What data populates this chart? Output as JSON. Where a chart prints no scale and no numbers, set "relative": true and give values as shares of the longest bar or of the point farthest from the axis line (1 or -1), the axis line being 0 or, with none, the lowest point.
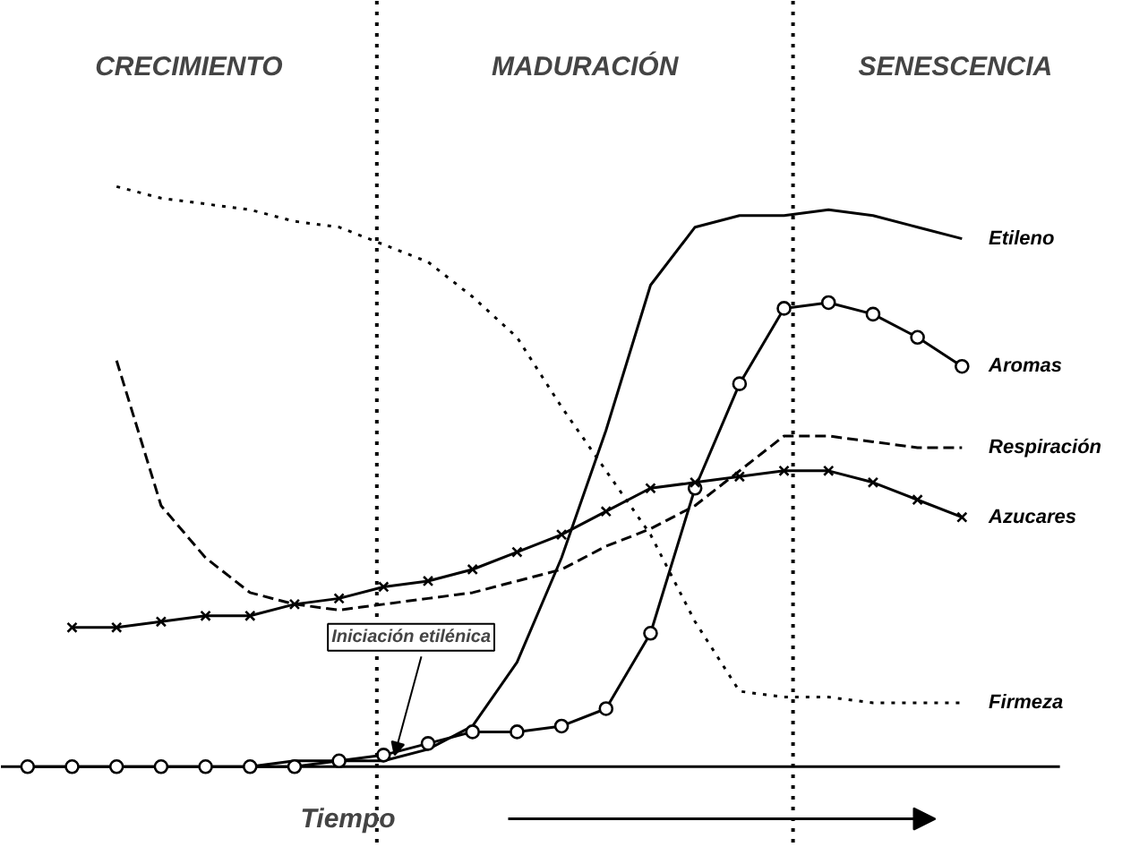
{
  "chart_data": {
    "type": "line",
    "relative": true,
    "xlabel": "Tiempo",
    "tick_labels": false,
    "grid": false,
    "legend": "right",
    "annotations": [
      "CRECIMIENTO",
      "MADURACIÓN",
      "SENESCENCIA",
      "Iniciación etilénica"
    ],
    "categories": [
      null,
      null,
      null,
      null,
      null,
      null,
      null,
      null,
      null,
      null,
      null,
      null,
      null,
      null,
      null,
      null,
      null,
      null,
      null,
      null,
      null,
      null,
      null,
      null
    ],
    "series": [
      {
        "name": "Etileno",
        "color": "#000000",
        "line_style": "solid",
        "marker": "none",
        "values": [
          null,
          null,
          null,
          null,
          null,
          0,
          0.01,
          0.01,
          0.01,
          0.03,
          0.07,
          0.18,
          0.36,
          0.58,
          0.83,
          0.93,
          0.95,
          0.95,
          0.96,
          0.95,
          0.93,
          0.91,
          null,
          null
        ]
      },
      {
        "name": "Aromas",
        "color": "#000000",
        "line_style": "solid",
        "marker": "circle",
        "values": [
          0,
          0,
          0,
          0,
          0,
          0,
          0,
          0.01,
          0.02,
          0.04,
          0.06,
          0.06,
          0.07,
          0.1,
          0.23,
          0.48,
          0.66,
          0.79,
          0.8,
          0.78,
          0.74,
          0.69,
          null,
          null
        ]
      },
      {
        "name": "Respiración",
        "color": "#000000",
        "line_style": "dashed",
        "marker": "none",
        "values": [
          null,
          null,
          0.7,
          0.45,
          0.36,
          0.3,
          0.28,
          0.27,
          0.28,
          0.29,
          0.3,
          0.32,
          0.34,
          0.38,
          0.41,
          0.45,
          0.51,
          0.57,
          0.57,
          0.56,
          0.55,
          0.55,
          null,
          null
        ]
      },
      {
        "name": "Azucares",
        "color": "#000000",
        "line_style": "solid",
        "marker": "cross",
        "values": [
          null,
          0.24,
          0.24,
          0.25,
          0.26,
          0.26,
          0.28,
          0.29,
          0.31,
          0.32,
          0.34,
          0.37,
          0.4,
          0.44,
          0.48,
          0.49,
          0.5,
          0.51,
          0.51,
          0.49,
          0.46,
          0.43,
          null,
          null
        ]
      },
      {
        "name": "Firmeza",
        "color": "#000000",
        "line_style": "dotted",
        "marker": "none",
        "values": [
          null,
          null,
          1.0,
          0.98,
          0.97,
          0.96,
          0.94,
          0.93,
          0.9,
          0.87,
          0.81,
          0.74,
          0.62,
          0.51,
          0.4,
          0.25,
          0.13,
          0.12,
          0.12,
          0.11,
          0.11,
          0.11,
          null,
          null
        ]
      }
    ]
  }
}
